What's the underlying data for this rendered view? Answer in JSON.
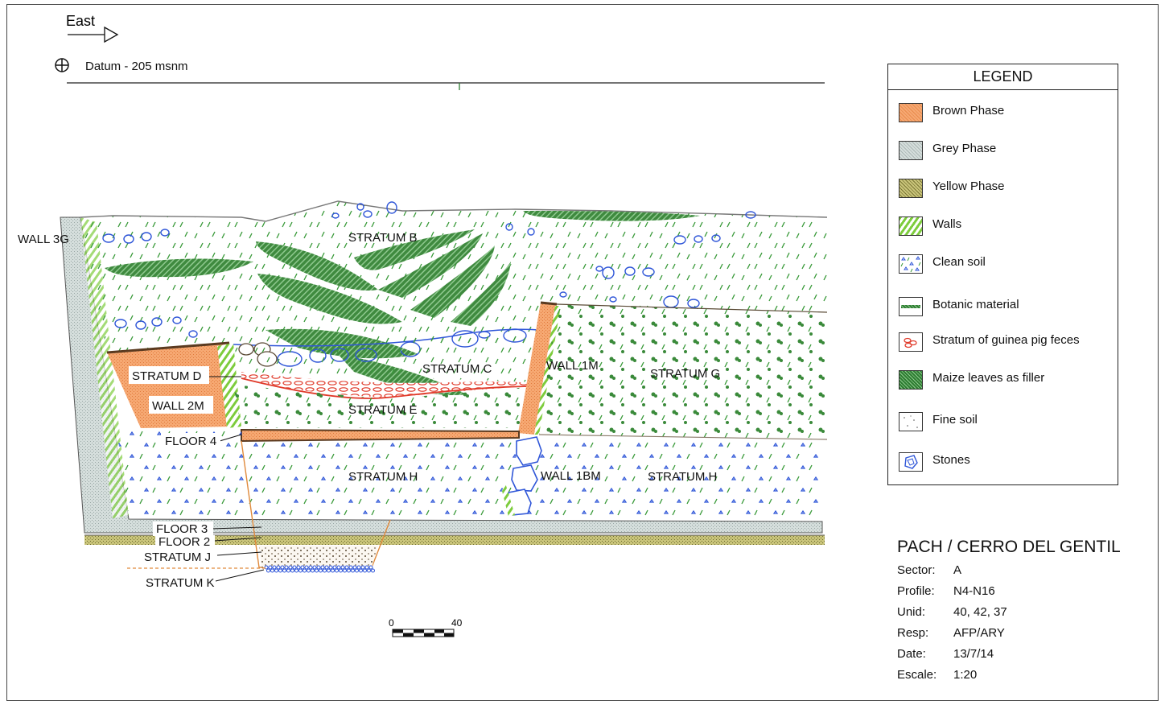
{
  "header": {
    "east_label": "East",
    "datum_label": "Datum - 205 msnm"
  },
  "profile_labels": {
    "wall_3g": "WALL 3G",
    "stratum_b": "STRATUM B",
    "stratum_c": "STRATUM C",
    "stratum_d": "STRATUM D",
    "wall_2m": "WALL 2M",
    "stratum_e": "STRATUM E",
    "wall_1m": "WALL 1M",
    "stratum_g": "STRATUM G",
    "floor_4": "FLOOR 4",
    "stratum_h_left": "STRATUM H",
    "wall_1bm": "WALL 1BM",
    "stratum_h_right": "STRATUM H",
    "floor_3": "FLOOR 3",
    "floor_2": "FLOOR 2",
    "stratum_j": "STRATUM J",
    "stratum_k": "STRATUM K"
  },
  "scale_bar": {
    "start": "0",
    "end": "40"
  },
  "legend": {
    "title": "LEGEND",
    "items": [
      {
        "label": "Brown Phase",
        "icon": "brown-phase-swatch",
        "color": "#f4a36b"
      },
      {
        "label": "Grey Phase",
        "icon": "grey-phase-swatch",
        "color": "#c9d4d2"
      },
      {
        "label": "Yellow Phase",
        "icon": "yellow-phase-swatch",
        "color": "#b3b06a"
      },
      {
        "label": "Walls",
        "icon": "walls-swatch",
        "color": "#8bd34a"
      },
      {
        "label": "Clean soil",
        "icon": "clean-soil-swatch",
        "color": "#2f56d8"
      },
      {
        "label": "Botanic material",
        "icon": "botanic-material-swatch",
        "color": "#2e7d32"
      },
      {
        "label": "Stratum of guinea pig feces",
        "icon": "guinea-pig-feces-swatch",
        "color": "#e03a2a"
      },
      {
        "label": "Maize leaves as filler",
        "icon": "maize-leaves-swatch",
        "color": "#2e7d32"
      },
      {
        "label": "Fine soil",
        "icon": "fine-soil-swatch",
        "color": "#8a7a6a"
      },
      {
        "label": "Stones",
        "icon": "stones-swatch",
        "color": "#2f56d8"
      }
    ]
  },
  "info": {
    "title": "PACH  / CERRO DEL GENTIL",
    "rows": [
      {
        "key": "Sector:",
        "value": "A"
      },
      {
        "key": "Profile:",
        "value": "N4-N16"
      },
      {
        "key": "Unid:",
        "value": "40, 42, 37"
      },
      {
        "key": "Resp:",
        "value": "AFP/ARY"
      },
      {
        "key": "Date:",
        "value": "13/7/14"
      },
      {
        "key": "Escale:",
        "value": "1:20"
      }
    ]
  }
}
